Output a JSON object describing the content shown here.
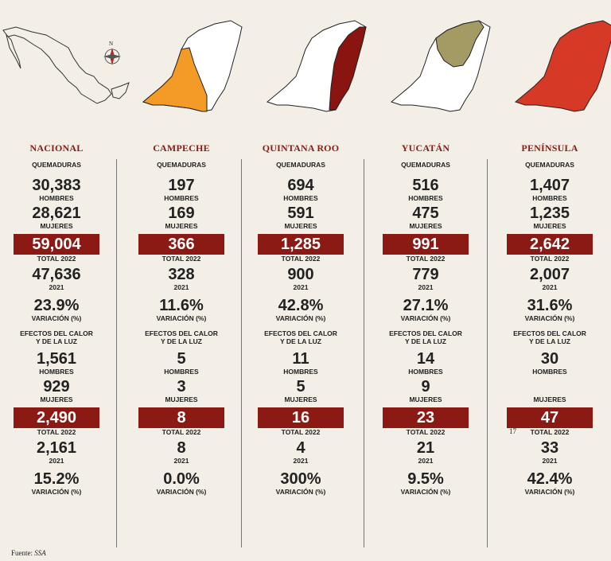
{
  "chart_data": {
    "type": "table",
    "columns": [
      {
        "name": "NACIONAL",
        "quemaduras": {
          "hombres": "30,383",
          "mujeres": "28,621",
          "total_2022": "59,004",
          "y2021": "47,636",
          "variacion": "23.9%"
        },
        "calor": {
          "hombres": "1,561",
          "mujeres": "929",
          "total_2022": "2,490",
          "y2021": "2,161",
          "variacion": "15.2%"
        }
      },
      {
        "name": "CAMPECHE",
        "quemaduras": {
          "hombres": "197",
          "mujeres": "169",
          "total_2022": "366",
          "y2021": "328",
          "variacion": "11.6%"
        },
        "calor": {
          "hombres": "5",
          "mujeres": "3",
          "total_2022": "8",
          "y2021": "8",
          "variacion": "0.0%"
        }
      },
      {
        "name": "QUINTANA ROO",
        "quemaduras": {
          "hombres": "694",
          "mujeres": "591",
          "total_2022": "1,285",
          "y2021": "900",
          "variacion": "42.8%"
        },
        "calor": {
          "hombres": "11",
          "mujeres": "5",
          "total_2022": "16",
          "y2021": "4",
          "variacion": "300%"
        }
      },
      {
        "name": "YUCATÁN",
        "quemaduras": {
          "hombres": "516",
          "mujeres": "475",
          "total_2022": "991",
          "y2021": "779",
          "variacion": "27.1%"
        },
        "calor": {
          "hombres": "14",
          "mujeres": "9",
          "total_2022": "23",
          "y2021": "21",
          "variacion": "9.5%"
        }
      },
      {
        "name": "PENÍNSULA",
        "quemaduras": {
          "hombres": "1,407",
          "mujeres": "1,235",
          "total_2022": "2,642",
          "y2021": "2,007",
          "variacion": "31.6%"
        },
        "calor": {
          "hombres": "30",
          "mujeres": "",
          "total_2022": "47",
          "y2021": "33",
          "variacion": "42.4%"
        }
      }
    ]
  },
  "labels": {
    "quemaduras": "QUEMADURAS",
    "calor": "EFECTOS DEL CALOR\nY DE LA LUZ",
    "hombres": "HOMBRES",
    "mujeres": "MUJERES",
    "total": "TOTAL 2022",
    "y2021": "2021",
    "variacion": "VARIACIÓN (%)"
  },
  "stray_number": "17",
  "source": {
    "prefix": "Fuente: ",
    "name": "SSA"
  },
  "colors": {
    "accent": "#8b1a14",
    "campeche": "#f39a27",
    "quintana_roo": "#8a1410",
    "yucatan": "#a39a64",
    "peninsula": "#d63a26"
  }
}
